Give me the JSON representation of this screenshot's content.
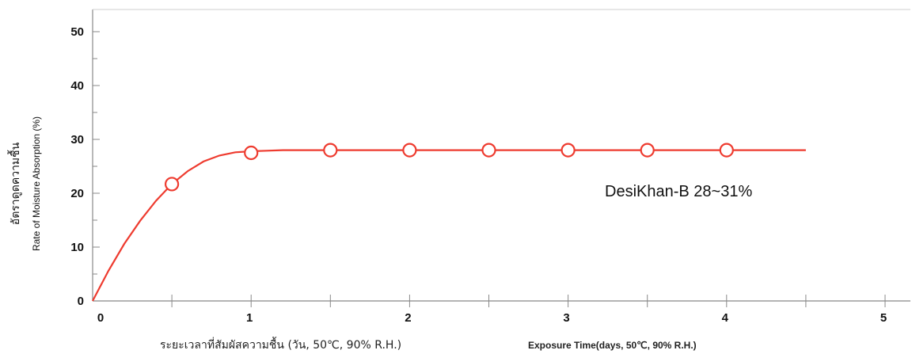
{
  "chart_data": {
    "type": "line",
    "title": "",
    "ylabel_th": "อัตราดูดความชื้น",
    "ylabel": "Rate of Moisture Absorption (%)",
    "xlabel_th": "ระยะเวลาที่สัมผัสความชื้น (วัน, 50℃, 90% R.H.)",
    "xlabel": "Exposure Time(days, 50℃, 90% R.H.)",
    "xlim": [
      0,
      5
    ],
    "ylim": [
      0,
      50
    ],
    "x_ticks": [
      "0",
      "1",
      "2",
      "3",
      "4",
      "5"
    ],
    "y_ticks": [
      "0",
      "10",
      "20",
      "30",
      "40",
      "50"
    ],
    "grid": false,
    "color": "#ee3b2f",
    "series": [
      {
        "name": "DesiKhan-B",
        "curve_x": [
          0,
          0.1,
          0.2,
          0.3,
          0.4,
          0.5,
          0.6,
          0.7,
          0.8,
          0.9,
          1.0,
          1.1,
          1.2,
          1.3,
          1.5,
          2.0,
          2.5,
          3.0,
          3.5,
          4.0,
          4.5
        ],
        "curve_y": [
          0,
          5.6,
          10.6,
          14.9,
          18.6,
          21.7,
          24.1,
          25.9,
          27.0,
          27.6,
          27.8,
          27.9,
          28.0,
          28.0,
          28.0,
          28.0,
          28.0,
          28.0,
          28.0,
          28.0,
          28.0
        ],
        "marker_x": [
          0.5,
          1.0,
          1.5,
          2.0,
          2.5,
          3.0,
          3.5,
          4.0
        ],
        "marker_y": [
          21.7,
          27.5,
          28.0,
          28.0,
          28.0,
          28.0,
          28.0,
          28.0
        ]
      }
    ],
    "annotation": "DesiKhan-B 28~31%"
  }
}
